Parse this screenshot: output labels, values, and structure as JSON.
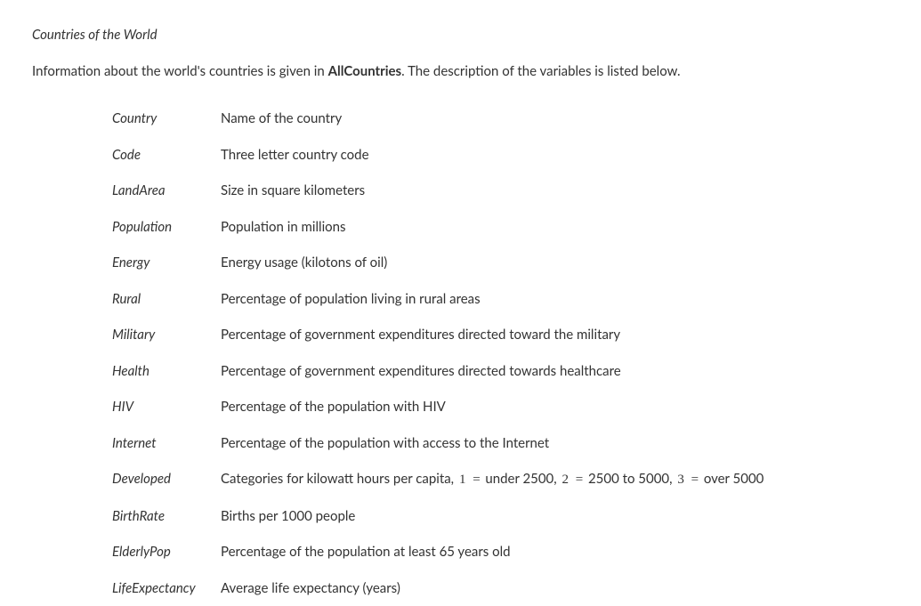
{
  "title": "Countries of the World",
  "intro_prefix": "Information about the world's countries is given in ",
  "intro_dataset": "AllCountries",
  "intro_suffix": ". The description of the variables is listed below.",
  "variables": [
    {
      "name": "Country",
      "desc": "Name of the country"
    },
    {
      "name": "Code",
      "desc": "Three letter country code"
    },
    {
      "name": "LandArea",
      "desc": "Size in square kilometers"
    },
    {
      "name": "Population",
      "desc": "Population in millions"
    },
    {
      "name": "Energy",
      "desc": "Energy usage (kilotons of oil)"
    },
    {
      "name": "Rural",
      "desc": "Percentage of population living in rural areas"
    },
    {
      "name": "Military",
      "desc": "Percentage of government expenditures directed toward the military"
    },
    {
      "name": "Health",
      "desc": "Percentage of government expenditures directed towards healthcare"
    },
    {
      "name": "HIV",
      "desc": "Percentage of the population with HIV"
    },
    {
      "name": "Internet",
      "desc": "Percentage of the population with access to the Internet"
    },
    {
      "name": "Developed",
      "desc": "Categories for kilowatt hours per capita, ",
      "math": [
        "1",
        "=",
        " under 2500, ",
        "2",
        "=",
        " 2500 to 5000, ",
        "3",
        "=",
        " over 5000"
      ]
    },
    {
      "name": "BirthRate",
      "desc": "Births per 1000 people"
    },
    {
      "name": "ElderlyPop",
      "desc": "Percentage of the population at least 65 years old"
    },
    {
      "name": "LifeExpectancy",
      "desc": "Average life expectancy (years)"
    }
  ]
}
